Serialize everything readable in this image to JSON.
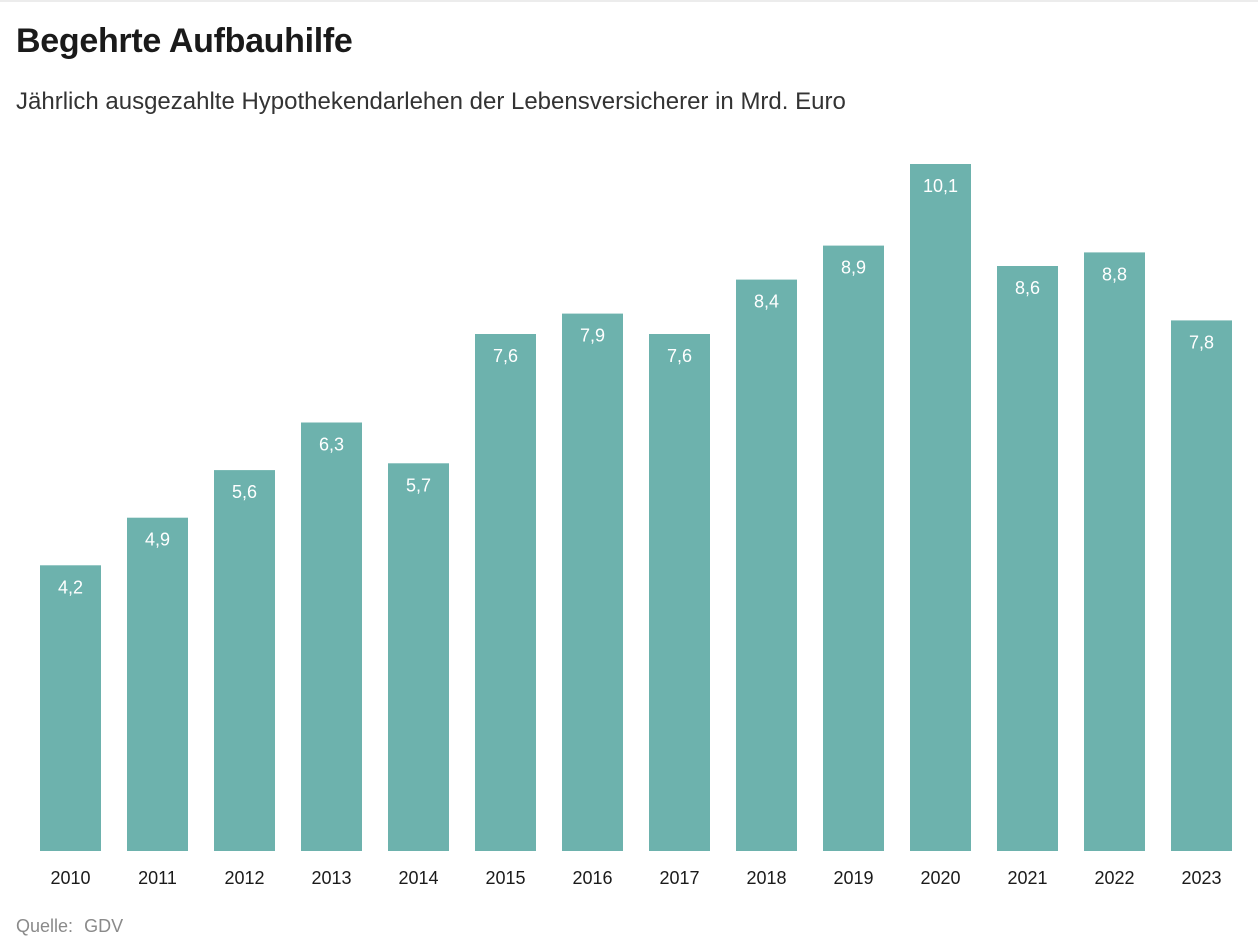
{
  "title": "Begehrte Aufbauhilfe",
  "subtitle": "Jährlich ausgezahlte Hypothekendarlehen der Lebensversicherer in Mrd. Euro",
  "source": {
    "label": "Quelle:",
    "value": "GDV"
  },
  "colors": {
    "bar": "#6db2ad",
    "bar_label": "#ffffff",
    "text": "#1a1a1a",
    "source": "#8a8a8a"
  },
  "chart_data": {
    "type": "bar",
    "title": "Begehrte Aufbauhilfe",
    "subtitle": "Jährlich ausgezahlte Hypothekendarlehen der Lebensversicherer in Mrd. Euro",
    "xlabel": "",
    "ylabel": "",
    "categories": [
      "2010",
      "2011",
      "2012",
      "2013",
      "2014",
      "2015",
      "2016",
      "2017",
      "2018",
      "2019",
      "2020",
      "2021",
      "2022",
      "2023"
    ],
    "values": [
      4.2,
      4.9,
      5.6,
      6.3,
      5.7,
      7.6,
      7.9,
      7.6,
      8.4,
      8.9,
      10.1,
      8.6,
      8.8,
      7.8
    ],
    "value_labels": [
      "4,2",
      "4,9",
      "5,6",
      "6,3",
      "5,7",
      "7,6",
      "7,9",
      "7,6",
      "8,4",
      "8,9",
      "10,1",
      "8,6",
      "8,8",
      "7,8"
    ],
    "ylim": [
      0,
      10.1
    ],
    "grid": false,
    "legend": "none",
    "data_labels": "inside-top"
  }
}
